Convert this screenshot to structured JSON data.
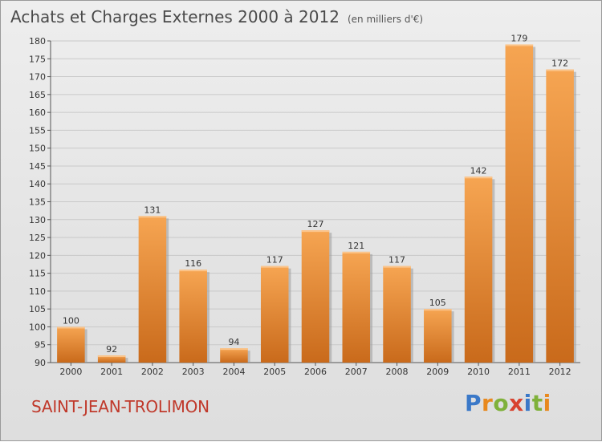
{
  "header": {
    "title": "Achats et Charges Externes 2000 à 2012",
    "unit": "(en milliers d'€)"
  },
  "commune": "SAINT-JEAN-TROLIMON",
  "logo_text": "Proxiti",
  "colors": {
    "bar_top": "#f6a552",
    "bar_bottom": "#c96a1b",
    "commune": "#c0392b"
  },
  "chart_data": {
    "type": "bar",
    "title": "Achats et Charges Externes 2000 à 2012",
    "xlabel": "",
    "ylabel": "en milliers d'€",
    "categories": [
      "2000",
      "2001",
      "2002",
      "2003",
      "2004",
      "2005",
      "2006",
      "2007",
      "2008",
      "2009",
      "2010",
      "2011",
      "2012"
    ],
    "values": [
      100,
      92,
      131,
      116,
      94,
      117,
      127,
      121,
      117,
      105,
      142,
      179,
      172
    ],
    "ylim": [
      90,
      180
    ],
    "yticks": [
      90,
      95,
      100,
      105,
      110,
      115,
      120,
      125,
      130,
      135,
      140,
      145,
      150,
      155,
      160,
      165,
      170,
      175,
      180
    ],
    "grid": true
  }
}
